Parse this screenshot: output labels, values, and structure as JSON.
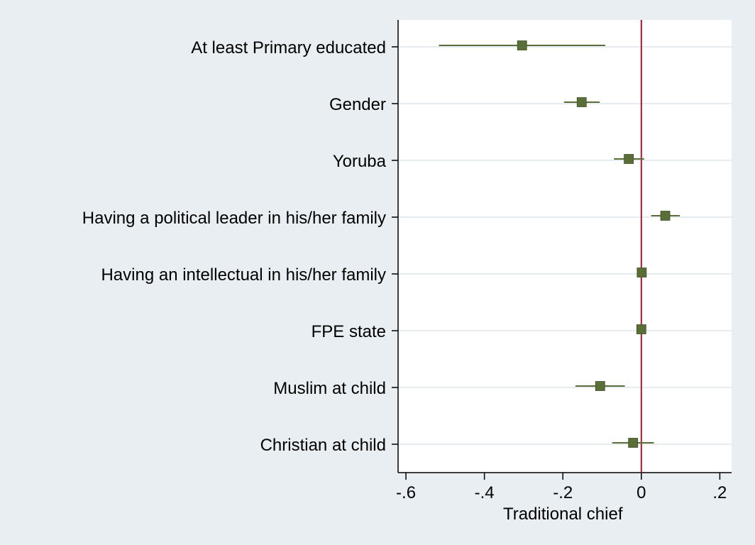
{
  "chart_data": {
    "type": "coefficient-plot",
    "xlabel": "Traditional chief",
    "xlim": [
      -0.62,
      0.23
    ],
    "xticks": [
      -0.6,
      -0.4,
      -0.2,
      0,
      0.2
    ],
    "xtick_labels": [
      "-.6",
      "-.4",
      "-.2",
      "0",
      ".2"
    ],
    "reference_line": 0,
    "grid": true,
    "categories": [
      "At least Primary educated",
      "Gender",
      "Yoruba",
      "Having a political leader in his/her family",
      "Having an intellectual in his/her family",
      "FPE state",
      "Muslim at child",
      "Christian at child"
    ],
    "estimates": [
      -0.304,
      -0.152,
      -0.032,
      0.061,
      0.001,
      0.0,
      -0.105,
      -0.021
    ],
    "ci_low": [
      -0.516,
      -0.197,
      -0.07,
      0.025,
      -0.002,
      -0.002,
      -0.168,
      -0.074
    ],
    "ci_high": [
      -0.092,
      -0.106,
      0.007,
      0.098,
      0.004,
      0.002,
      -0.042,
      0.032
    ],
    "colors": {
      "background": "#e8eef1",
      "plot_area": "#ffffff",
      "marker": "#5a6e37",
      "ci_line": "#5a6e37",
      "reference_line": "#b2182b",
      "grid": "#e6ecef"
    }
  }
}
